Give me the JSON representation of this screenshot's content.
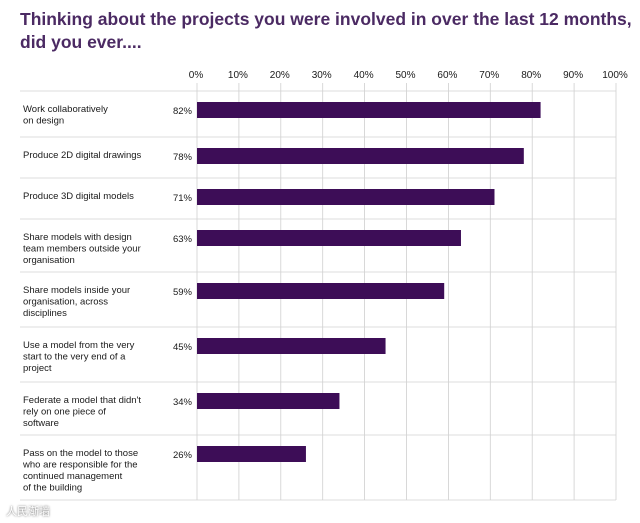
{
  "chart_data": {
    "type": "bar",
    "orientation": "horizontal",
    "title_lines": [
      "Thinking about the projects you were involved in over the last 12 months,",
      "did you ever...."
    ],
    "x_ticks": [
      "0%",
      "10%",
      "20%",
      "30%",
      "40%",
      "50%",
      "60%",
      "70%",
      "80%",
      "90%",
      "100%"
    ],
    "xlim": [
      0,
      100
    ],
    "categories": [
      [
        "Work collaboratively",
        "on design"
      ],
      [
        "Produce 2D digital drawings"
      ],
      [
        "Produce 3D digital models"
      ],
      [
        "Share models with design",
        "team members outside your",
        "organisation"
      ],
      [
        "Share models inside your",
        "organisation, across",
        "disciplines"
      ],
      [
        "Use a model from the very",
        "start to the very end of a",
        "project"
      ],
      [
        "Federate a model that didn't",
        "rely on one piece of",
        "software"
      ],
      [
        "Pass on the model to those",
        "who are responsible for the",
        "continued management",
        "of the building"
      ]
    ],
    "values": [
      82,
      78,
      71,
      63,
      59,
      45,
      34,
      26
    ],
    "value_labels": [
      "82%",
      "78%",
      "71%",
      "63%",
      "59%",
      "45%",
      "34%",
      "26%"
    ],
    "bar_color": "#3d0d57"
  },
  "watermark": "人民渐墙"
}
